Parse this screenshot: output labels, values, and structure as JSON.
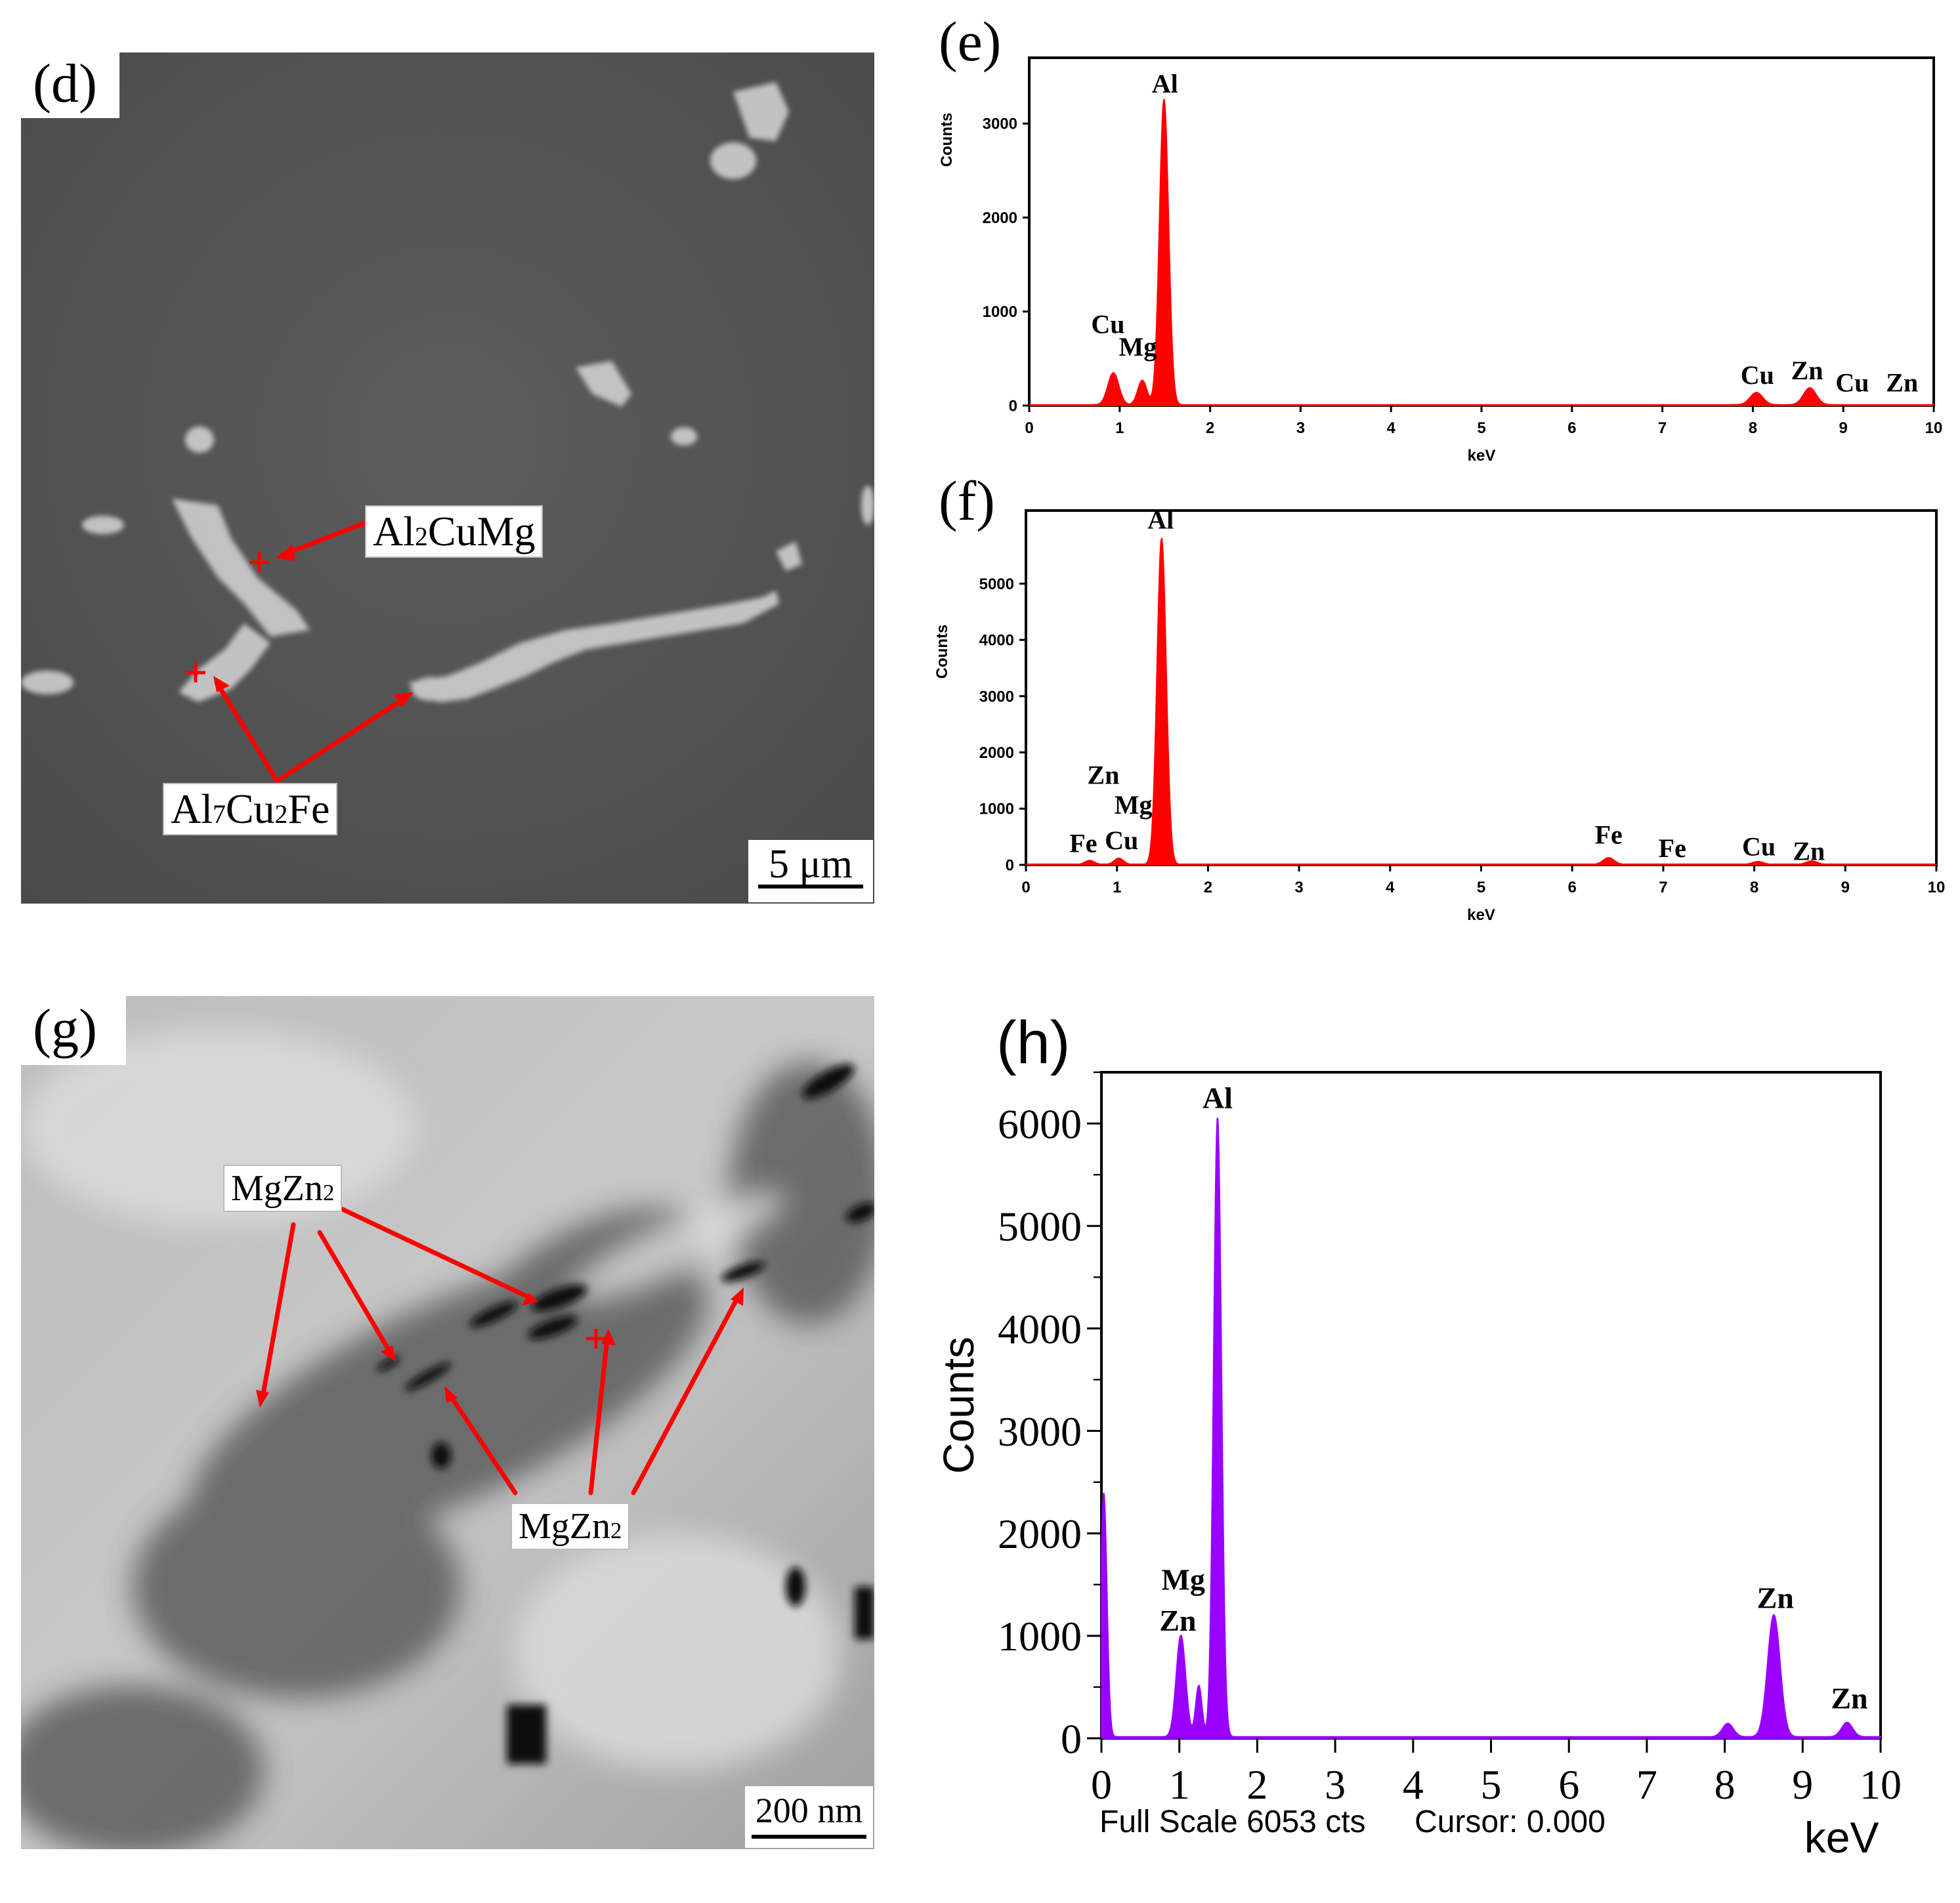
{
  "panels": {
    "d": {
      "label": "(d)",
      "phase_labels": [
        "Al2CuMg",
        "Al7Cu2Fe"
      ],
      "scale_bar": "5 μm"
    },
    "g": {
      "label": "(g)",
      "phase_labels": [
        "MgZn2",
        "MgZn2"
      ],
      "scale_bar": "200 nm"
    },
    "e": {
      "label": "(e)"
    },
    "f": {
      "label": "(f)"
    },
    "h": {
      "label": "(h)",
      "footer_left": "Full Scale 6053 cts",
      "footer_right": "Cursor: 0.000"
    }
  },
  "colors": {
    "marker": "#ff0000",
    "spectrum_ef": "#ff0000",
    "spectrum_h": "#9900ff",
    "sem_background": "#555555"
  },
  "chart_data": [
    {
      "id": "e",
      "type": "area",
      "xlabel": "keV",
      "ylabel": "Counts",
      "xlim": [
        0,
        10
      ],
      "ylim": [
        0,
        3700
      ],
      "xticks": [
        0,
        1,
        2,
        3,
        4,
        5,
        6,
        7,
        8,
        9,
        10
      ],
      "yticks": [
        0,
        1000,
        2000,
        3000
      ],
      "peaks": [
        {
          "x": 0.93,
          "y": 340,
          "w": 0.06
        },
        {
          "x": 1.25,
          "y": 260,
          "w": 0.05
        },
        {
          "x": 1.49,
          "y": 3250,
          "w": 0.05
        },
        {
          "x": 8.04,
          "y": 130,
          "w": 0.07
        },
        {
          "x": 8.63,
          "y": 180,
          "w": 0.07
        }
      ],
      "annotations": [
        {
          "text": "Al",
          "x": 1.5,
          "y": 3330
        },
        {
          "text": "Cu",
          "x": 0.87,
          "y": 770
        },
        {
          "text": "Mg",
          "x": 1.2,
          "y": 530
        },
        {
          "text": "Cu",
          "x": 8.05,
          "y": 230
        },
        {
          "text": "Zn",
          "x": 8.6,
          "y": 280
        },
        {
          "text": "Cu",
          "x": 9.1,
          "y": 150
        },
        {
          "text": "Zn",
          "x": 9.65,
          "y": 150
        }
      ]
    },
    {
      "id": "f",
      "type": "area",
      "xlabel": "keV",
      "ylabel": "Counts",
      "xlim": [
        0,
        10
      ],
      "ylim": [
        0,
        6300
      ],
      "xticks": [
        0,
        1,
        2,
        3,
        4,
        5,
        6,
        7,
        8,
        9,
        10
      ],
      "yticks": [
        0,
        1000,
        2000,
        3000,
        4000,
        5000
      ],
      "peaks": [
        {
          "x": 0.7,
          "y": 70,
          "w": 0.05
        },
        {
          "x": 1.02,
          "y": 110,
          "w": 0.05
        },
        {
          "x": 1.49,
          "y": 5800,
          "w": 0.05
        },
        {
          "x": 6.4,
          "y": 120,
          "w": 0.06
        },
        {
          "x": 8.04,
          "y": 50,
          "w": 0.06
        },
        {
          "x": 8.63,
          "y": 60,
          "w": 0.06
        }
      ],
      "annotations": [
        {
          "text": "Al",
          "x": 1.48,
          "y": 5980
        },
        {
          "text": "Zn",
          "x": 0.85,
          "y": 1440
        },
        {
          "text": "Mg",
          "x": 1.18,
          "y": 910
        },
        {
          "text": "Fe",
          "x": 0.63,
          "y": 230
        },
        {
          "text": "Cu",
          "x": 1.05,
          "y": 280
        },
        {
          "text": "Fe",
          "x": 6.4,
          "y": 380
        },
        {
          "text": "Fe",
          "x": 7.1,
          "y": 140
        },
        {
          "text": "Cu",
          "x": 8.05,
          "y": 170
        },
        {
          "text": "Zn",
          "x": 8.6,
          "y": 90
        }
      ]
    },
    {
      "id": "h",
      "type": "area",
      "xlabel": "keV",
      "ylabel": "Counts",
      "xlim": [
        0,
        10
      ],
      "ylim": [
        0,
        6500
      ],
      "xticks": [
        0,
        1,
        2,
        3,
        4,
        5,
        6,
        7,
        8,
        9,
        10
      ],
      "yticks": [
        0,
        1000,
        2000,
        3000,
        4000,
        5000,
        6000
      ],
      "peaks": [
        {
          "x": 0.03,
          "y": 2380,
          "w": 0.04
        },
        {
          "x": 1.02,
          "y": 990,
          "w": 0.06
        },
        {
          "x": 1.25,
          "y": 500,
          "w": 0.04
        },
        {
          "x": 1.49,
          "y": 6050,
          "w": 0.05
        },
        {
          "x": 8.04,
          "y": 130,
          "w": 0.07
        },
        {
          "x": 8.63,
          "y": 1190,
          "w": 0.08
        },
        {
          "x": 9.57,
          "y": 140,
          "w": 0.07
        }
      ],
      "annotations": [
        {
          "text": "Al",
          "x": 1.49,
          "y": 6150
        },
        {
          "text": "Mg",
          "x": 1.05,
          "y": 1450
        },
        {
          "text": "Zn",
          "x": 0.98,
          "y": 1050
        },
        {
          "text": "Zn",
          "x": 8.65,
          "y": 1270
        },
        {
          "text": "Zn",
          "x": 9.6,
          "y": 290
        }
      ]
    }
  ]
}
